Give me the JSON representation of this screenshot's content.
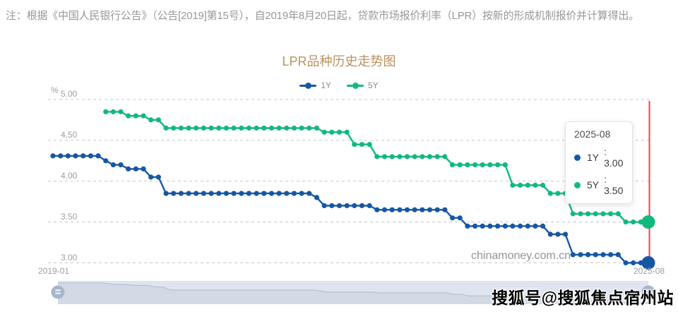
{
  "note": "注：根据《中国人民银行公告》（公告[2019]第15号），自2019年8月20日起，贷款市场报价利率（LPR）按新的形成机制报价并计算得出。",
  "watermarks": {
    "chart_watermark": "chinamoney.com.cn",
    "page_watermark": "搜狐号@搜狐焦点宿州站"
  },
  "tooltip": {
    "title": "2025-08",
    "rows": [
      {
        "label": "1Y",
        "value_text": ": 3.00",
        "color": "#1657a3"
      },
      {
        "label": "5Y",
        "value_text": ": 3.50",
        "color": "#11b97e"
      }
    ]
  },
  "chart_data": {
    "type": "line",
    "title": "LPR品种历史走势图",
    "ylabel": "%",
    "xlabel": "",
    "x_unit": "month",
    "x_range": [
      "2019-01",
      "2025-08"
    ],
    "x_start_label": "2019-01",
    "x_end_label": "2025-08",
    "n_points": 80,
    "ylim": [
      3.0,
      5.0
    ],
    "y_ticks": [
      "5.00",
      "4.50",
      "4.00",
      "3.50",
      "3.00"
    ],
    "grid": "horizontal dashed",
    "legend_position": "top center",
    "legend": [
      "1Y",
      "5Y"
    ],
    "highlight_marker": {
      "x_label": "2025-08",
      "line_color": "#f54040"
    },
    "series": [
      {
        "name": "1Y",
        "color": "#1657a3",
        "values": [
          4.31,
          4.31,
          4.31,
          4.31,
          4.31,
          4.31,
          4.31,
          4.25,
          4.2,
          4.2,
          4.15,
          4.15,
          4.15,
          4.05,
          4.05,
          3.85,
          3.85,
          3.85,
          3.85,
          3.85,
          3.85,
          3.85,
          3.85,
          3.85,
          3.85,
          3.85,
          3.85,
          3.85,
          3.85,
          3.85,
          3.85,
          3.85,
          3.85,
          3.85,
          3.85,
          3.8,
          3.7,
          3.7,
          3.7,
          3.7,
          3.7,
          3.7,
          3.7,
          3.65,
          3.65,
          3.65,
          3.65,
          3.65,
          3.65,
          3.65,
          3.65,
          3.65,
          3.65,
          3.55,
          3.55,
          3.45,
          3.45,
          3.45,
          3.45,
          3.45,
          3.45,
          3.45,
          3.45,
          3.45,
          3.45,
          3.45,
          3.35,
          3.35,
          3.35,
          3.1,
          3.1,
          3.1,
          3.1,
          3.1,
          3.1,
          3.1,
          3.0,
          3.0,
          3.0,
          3.0
        ]
      },
      {
        "name": "5Y",
        "color": "#11b97e",
        "values": [
          null,
          null,
          null,
          null,
          null,
          null,
          null,
          4.85,
          4.85,
          4.85,
          4.8,
          4.8,
          4.8,
          4.75,
          4.75,
          4.65,
          4.65,
          4.65,
          4.65,
          4.65,
          4.65,
          4.65,
          4.65,
          4.65,
          4.65,
          4.65,
          4.65,
          4.65,
          4.65,
          4.65,
          4.65,
          4.65,
          4.65,
          4.65,
          4.65,
          4.65,
          4.6,
          4.6,
          4.6,
          4.6,
          4.45,
          4.45,
          4.45,
          4.3,
          4.3,
          4.3,
          4.3,
          4.3,
          4.3,
          4.3,
          4.3,
          4.3,
          4.3,
          4.2,
          4.2,
          4.2,
          4.2,
          4.2,
          4.2,
          4.2,
          4.2,
          3.95,
          3.95,
          3.95,
          3.95,
          3.95,
          3.85,
          3.85,
          3.85,
          3.6,
          3.6,
          3.6,
          3.6,
          3.6,
          3.6,
          3.6,
          3.5,
          3.5,
          3.5,
          3.5
        ]
      }
    ]
  },
  "slider": {
    "preview_series": "1Y",
    "track_color": "#dfe5ef",
    "handle_color": "#a8b6cc"
  }
}
